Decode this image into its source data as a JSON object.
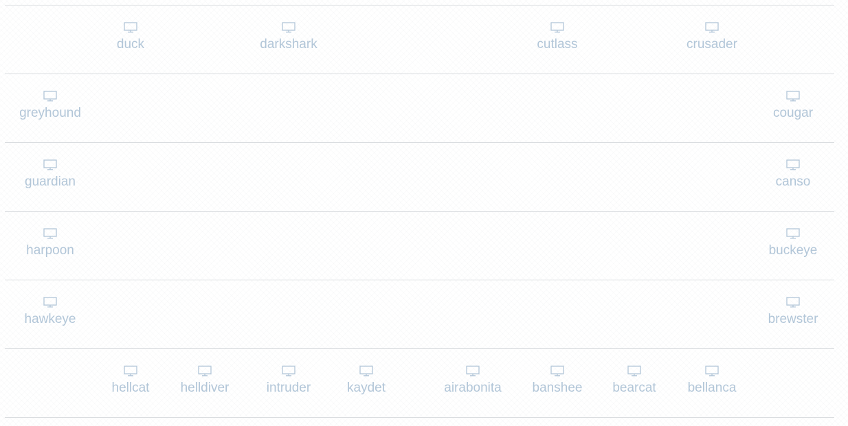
{
  "icon": "monitor-icon",
  "colors": {
    "label": "#b2c6d8",
    "icon": "#b2c6d8",
    "divider": "#d9dcdf",
    "background": "#ffffff"
  },
  "rows": [
    {
      "hosts": [
        "duck",
        "darkshark",
        "cutlass",
        "crusader"
      ]
    },
    {
      "hosts": [
        "greyhound",
        "cougar"
      ]
    },
    {
      "hosts": [
        "guardian",
        "canso"
      ]
    },
    {
      "hosts": [
        "harpoon",
        "buckeye"
      ]
    },
    {
      "hosts": [
        "hawkeye",
        "brewster"
      ]
    },
    {
      "hosts": [
        "hellcat",
        "helldiver",
        "intruder",
        "kaydet",
        "airabonita",
        "banshee",
        "bearcat",
        "bellanca"
      ]
    }
  ]
}
